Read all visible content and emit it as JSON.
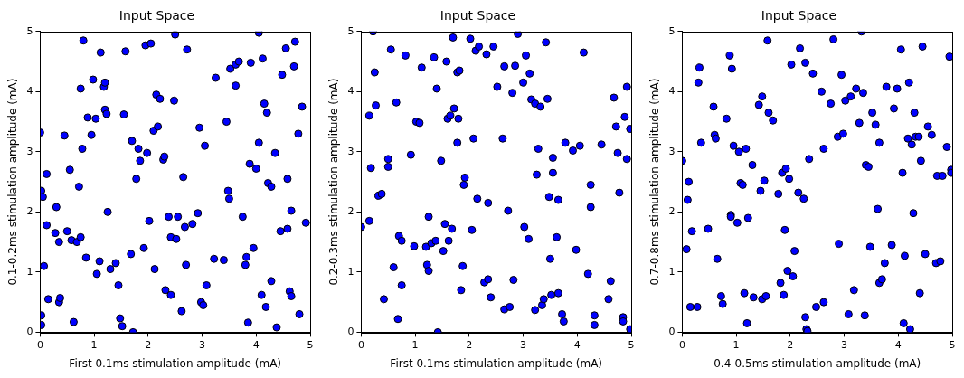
{
  "chart_data": [
    {
      "type": "scatter",
      "title": "Input Space",
      "x_label": "First 0.1ms stimulation amplitude (mA)",
      "y_label": "0.1-0.2ms stimulation amplitude (mA)",
      "color": "#0000ff",
      "marker": "circle",
      "grid": false,
      "xlim": [
        0,
        5
      ],
      "ylim": [
        0,
        5
      ],
      "xticks": [
        0,
        1,
        2,
        3,
        4,
        5
      ],
      "yticks": [
        0,
        1,
        2,
        3,
        4,
        5
      ],
      "x": [
        0,
        0.02,
        0.05,
        0.02,
        0.02,
        0.07,
        0.12,
        0.12,
        0.15,
        0.28,
        0.3,
        0.35,
        0.37,
        0.35,
        0.45,
        0.5,
        0.55,
        0.58,
        0.62,
        0.68,
        0.72,
        0.75,
        0.75,
        0.78,
        0.8,
        0.85,
        0.88,
        0.95,
        0.98,
        1.03,
        1.05,
        1.1,
        1.12,
        1.18,
        1.2,
        1.2,
        1.23,
        1.25,
        1.3,
        1.4,
        1.45,
        1.48,
        1.52,
        1.55,
        1.58,
        1.68,
        1.7,
        1.72,
        1.78,
        1.82,
        1.85,
        1.92,
        1.95,
        1.98,
        2.02,
        2.05,
        2.1,
        2.12,
        2.15,
        2.18,
        2.22,
        2.28,
        2.3,
        2.32,
        2.38,
        2.42,
        2.42,
        2.48,
        2.5,
        2.52,
        2.55,
        2.62,
        2.65,
        2.68,
        2.7,
        2.72,
        2.82,
        2.92,
        2.95,
        2.98,
        3.02,
        3.05,
        3.08,
        3.22,
        3.25,
        3.4,
        3.45,
        3.48,
        3.5,
        3.52,
        3.62,
        3.62,
        3.68,
        3.75,
        3.8,
        3.82,
        3.85,
        3.88,
        3.9,
        3.95,
        4.0,
        4.05,
        4.05,
        4.1,
        4.12,
        4.15,
        4.18,
        4.2,
        4.22,
        4.28,
        4.28,
        4.35,
        4.38,
        4.45,
        4.48,
        4.55,
        4.58,
        4.58,
        4.62,
        4.65,
        4.65,
        4.7,
        4.72,
        4.78,
        4.8,
        4.85,
        4.92
      ],
      "values": [
        3.32,
        2.35,
        2.25,
        0.28,
        0.12,
        1.1,
        2.63,
        1.78,
        0.55,
        1.65,
        2.08,
        0.5,
        0.57,
        1.5,
        3.27,
        1.68,
        2.7,
        1.53,
        0.17,
        1.5,
        2.42,
        1.58,
        4.05,
        3.05,
        4.85,
        1.24,
        3.57,
        3.28,
        4.2,
        3.55,
        0.97,
        1.18,
        4.65,
        4.08,
        4.15,
        3.7,
        3.63,
        2.0,
        1.05,
        1.15,
        0.78,
        0.23,
        0.1,
        3.62,
        4.67,
        1.3,
        3.18,
        0.0,
        2.55,
        3.05,
        2.85,
        1.4,
        4.77,
        2.98,
        1.85,
        4.8,
        3.35,
        1.05,
        3.95,
        3.42,
        3.88,
        2.87,
        2.92,
        0.7,
        1.92,
        0.62,
        1.58,
        3.85,
        4.95,
        1.55,
        1.92,
        0.35,
        2.58,
        1.75,
        1.12,
        4.7,
        1.8,
        1.98,
        3.4,
        0.5,
        0.45,
        3.1,
        0.78,
        1.22,
        4.23,
        1.2,
        3.5,
        2.35,
        2.22,
        4.38,
        4.1,
        4.45,
        4.5,
        1.92,
        1.12,
        1.25,
        0.16,
        2.8,
        4.48,
        1.4,
        2.72,
        4.98,
        3.15,
        0.62,
        4.55,
        3.8,
        0.42,
        3.65,
        2.48,
        2.42,
        0.85,
        2.98,
        0.08,
        1.68,
        4.28,
        4.72,
        2.55,
        1.72,
        0.68,
        2.02,
        0.6,
        4.42,
        4.83,
        3.3,
        0.3,
        3.75,
        1.82
      ]
    },
    {
      "type": "scatter",
      "title": "Input Space",
      "x_label": "First 0.1ms stimulation amplitude (mA)",
      "y_label": "0.2-0.3ms stimulation amplitude (mA)",
      "color": "#0000ff",
      "marker": "circle",
      "grid": false,
      "xlim": [
        0,
        5
      ],
      "ylim": [
        0,
        5
      ],
      "xticks": [
        0,
        1,
        2,
        3,
        4,
        5
      ],
      "yticks": [
        0,
        1,
        2,
        3,
        4,
        5
      ],
      "x": [
        0,
        0.15,
        0.15,
        0.18,
        0.22,
        0.25,
        0.27,
        0.32,
        0.38,
        0.42,
        0.5,
        0.5,
        0.55,
        0.6,
        0.65,
        0.68,
        0.7,
        0.75,
        0.75,
        0.82,
        0.92,
        0.98,
        1.02,
        1.08,
        1.12,
        1.2,
        1.22,
        1.25,
        1.25,
        1.3,
        1.35,
        1.38,
        1.4,
        1.42,
        1.48,
        1.52,
        1.55,
        1.58,
        1.6,
        1.62,
        1.65,
        1.68,
        1.7,
        1.72,
        1.78,
        1.78,
        1.8,
        1.82,
        1.85,
        1.88,
        1.9,
        1.92,
        2.02,
        2.05,
        2.08,
        2.12,
        2.15,
        2.18,
        2.28,
        2.32,
        2.35,
        2.35,
        2.4,
        2.45,
        2.52,
        2.62,
        2.65,
        2.65,
        2.72,
        2.75,
        2.8,
        2.82,
        2.85,
        2.9,
        3.0,
        3.02,
        3.05,
        3.1,
        3.12,
        3.15,
        3.22,
        3.22,
        3.25,
        3.28,
        3.32,
        3.35,
        3.38,
        3.42,
        3.45,
        3.48,
        3.5,
        3.52,
        3.55,
        3.55,
        3.62,
        3.65,
        3.65,
        3.72,
        3.75,
        3.78,
        3.92,
        3.98,
        4.05,
        4.12,
        4.2,
        4.25,
        4.25,
        4.32,
        4.32,
        4.45,
        4.58,
        4.62,
        4.68,
        4.72,
        4.75,
        4.78,
        4.85,
        4.85,
        4.88,
        4.92,
        4.92,
        4.98,
        4.98
      ],
      "values": [
        1.75,
        1.85,
        3.6,
        2.73,
        5.0,
        4.32,
        3.77,
        2.27,
        2.3,
        0.55,
        2.75,
        2.88,
        4.7,
        1.08,
        3.82,
        0.22,
        1.6,
        1.52,
        0.78,
        4.6,
        2.95,
        1.43,
        3.5,
        3.48,
        4.4,
        1.42,
        1.12,
        1.92,
        1.02,
        1.48,
        4.57,
        1.52,
        4.05,
        0.0,
        2.85,
        1.35,
        1.8,
        4.5,
        3.55,
        1.52,
        3.6,
        1.72,
        4.9,
        3.72,
        4.32,
        3.15,
        3.55,
        4.35,
        0.7,
        1.1,
        2.45,
        2.57,
        4.88,
        1.7,
        3.22,
        4.68,
        2.22,
        4.75,
        0.83,
        4.62,
        0.88,
        2.15,
        0.58,
        4.75,
        4.08,
        3.22,
        0.38,
        4.42,
        2.02,
        0.42,
        3.98,
        0.87,
        4.43,
        4.96,
        4.15,
        1.75,
        4.6,
        1.55,
        4.3,
        3.87,
        3.8,
        0.37,
        2.62,
        3.05,
        3.75,
        0.45,
        0.55,
        4.82,
        3.88,
        2.25,
        1.22,
        0.62,
        2.9,
        2.65,
        1.58,
        0.65,
        2.2,
        0.3,
        0.18,
        3.15,
        3.02,
        1.37,
        3.1,
        4.65,
        0.97,
        2.45,
        2.08,
        0.28,
        0.12,
        3.12,
        0.55,
        0.85,
        3.9,
        3.42,
        2.98,
        2.32,
        0.25,
        0.18,
        3.58,
        4.08,
        2.88,
        3.38,
        0.05
      ]
    },
    {
      "type": "scatter",
      "title": "Input Space",
      "x_label": "0.4-0.5ms stimulation amplitude (mA)",
      "y_label": "0.7-0.8ms stimulation amplitude (mA)",
      "color": "#0000ff",
      "marker": "circle",
      "grid": false,
      "xlim": [
        0,
        5
      ],
      "ylim": [
        0,
        5
      ],
      "xticks": [
        0,
        1,
        2,
        3,
        4,
        5
      ],
      "yticks": [
        0,
        1,
        2,
        3,
        4,
        5
      ],
      "x": [
        0,
        0.08,
        0.1,
        0.12,
        0.15,
        0.18,
        0.28,
        0.3,
        0.32,
        0.35,
        0.48,
        0.58,
        0.6,
        0.62,
        0.65,
        0.72,
        0.75,
        0.82,
        0.88,
        0.9,
        0.9,
        0.92,
        0.95,
        1.02,
        1.05,
        1.08,
        1.12,
        1.15,
        1.18,
        1.2,
        1.22,
        1.3,
        1.32,
        1.42,
        1.45,
        1.48,
        1.48,
        1.52,
        1.55,
        1.58,
        1.6,
        1.68,
        1.78,
        1.82,
        1.85,
        1.88,
        1.9,
        1.92,
        1.95,
        1.98,
        2.02,
        2.05,
        2.08,
        2.15,
        2.18,
        2.25,
        2.28,
        2.28,
        2.3,
        2.32,
        2.35,
        2.42,
        2.48,
        2.58,
        2.62,
        2.62,
        2.75,
        2.8,
        2.88,
        2.9,
        2.95,
        2.98,
        3.02,
        3.08,
        3.12,
        3.18,
        3.22,
        3.28,
        3.32,
        3.35,
        3.38,
        3.4,
        3.45,
        3.48,
        3.52,
        3.58,
        3.62,
        3.65,
        3.65,
        3.7,
        3.75,
        3.78,
        3.88,
        3.92,
        3.98,
        4.05,
        4.08,
        4.1,
        4.12,
        4.18,
        4.2,
        4.22,
        4.25,
        4.28,
        4.3,
        4.32,
        4.38,
        4.4,
        4.42,
        4.45,
        4.5,
        4.55,
        4.62,
        4.7,
        4.72,
        4.78,
        4.82,
        4.9,
        4.95,
        4.98,
        4.98
      ],
      "values": [
        2.85,
        1.38,
        2.2,
        2.5,
        0.42,
        1.68,
        0.42,
        4.15,
        4.4,
        3.15,
        1.72,
        3.75,
        3.28,
        3.22,
        1.22,
        0.6,
        0.47,
        3.55,
        4.6,
        1.95,
        1.92,
        4.38,
        3.1,
        1.82,
        3.0,
        2.48,
        2.45,
        0.65,
        3.05,
        0.15,
        1.9,
        2.78,
        0.58,
        3.78,
        2.35,
        3.92,
        0.55,
        2.52,
        0.6,
        4.85,
        3.65,
        3.52,
        2.3,
        0.82,
        2.65,
        0.62,
        1.7,
        2.72,
        1.02,
        2.55,
        4.45,
        0.93,
        1.35,
        2.32,
        4.72,
        2.22,
        4.48,
        0.25,
        0.05,
        0.02,
        2.88,
        4.3,
        0.42,
        4.0,
        3.05,
        0.5,
        3.8,
        4.87,
        3.25,
        1.47,
        4.28,
        3.3,
        3.85,
        0.3,
        3.92,
        0.7,
        4.05,
        3.48,
        5.0,
        3.98,
        0.28,
        2.78,
        2.75,
        1.42,
        3.65,
        3.45,
        2.05,
        3.15,
        0.82,
        0.88,
        1.15,
        4.08,
        1.45,
        3.72,
        4.05,
        4.7,
        2.65,
        0.15,
        1.27,
        3.22,
        4.15,
        0.05,
        3.12,
        1.98,
        3.65,
        3.25,
        3.25,
        0.65,
        2.85,
        4.75,
        1.3,
        3.42,
        3.28,
        1.15,
        2.6,
        1.18,
        2.6,
        3.08,
        4.58,
        2.7,
        2.65
      ]
    }
  ]
}
